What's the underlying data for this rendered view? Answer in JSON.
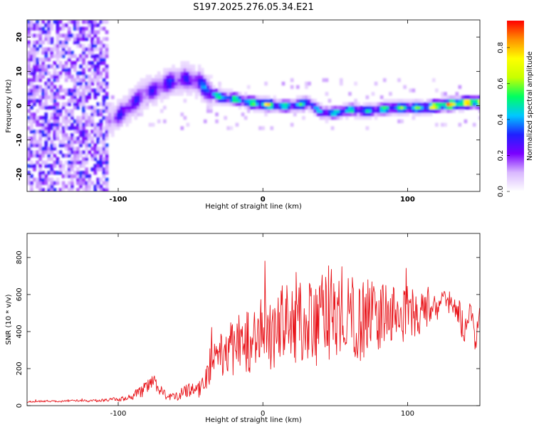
{
  "figure_title": "S197.2025.276.05.34.E21",
  "chart_data": [
    {
      "type": "heatmap",
      "title": "S197.2025.276.05.34.E21",
      "xlabel": "Height of straight line (km)",
      "ylabel": "Frequency (Hz)",
      "xlim": [
        -163,
        150
      ],
      "ylim": [
        -25,
        25
      ],
      "xticks": [
        -100,
        0,
        100
      ],
      "xtick_labels": [
        "-100",
        "0",
        "100"
      ],
      "yticks": [
        -20,
        -10,
        0,
        10,
        20
      ],
      "ytick_labels": [
        "-20",
        "-10",
        "0",
        "10",
        "20"
      ],
      "colorbar": {
        "label": "Normalized spectral amplitude",
        "range": [
          0,
          0.95
        ],
        "ticks": [
          0.0,
          0.2,
          0.4,
          0.6,
          0.8
        ],
        "tick_labels": [
          "0.0",
          "0.2",
          "0.4",
          "0.6",
          "0.8"
        ],
        "colormap": [
          "#ffffff",
          "#d9b8ff",
          "#7a00ff",
          "#2020ff",
          "#00c8ff",
          "#00ff60",
          "#c8ff00",
          "#ffff00",
          "#ff9000",
          "#ff0000"
        ]
      },
      "ridge_track": {
        "x": [
          -105,
          -95,
          -85,
          -75,
          -65,
          -55,
          -45,
          -38,
          -30,
          -20,
          -10,
          0,
          10,
          20,
          30,
          40,
          50,
          60,
          70,
          80,
          90,
          100,
          110,
          120,
          130,
          140,
          148
        ],
        "freq": [
          -4,
          -1,
          3,
          5,
          7,
          8,
          7,
          4,
          2.5,
          2,
          1,
          0.5,
          0,
          0,
          1,
          -2,
          -2,
          -1,
          -1.5,
          -1,
          -0.5,
          -0.5,
          -0.5,
          0,
          0.5,
          1,
          1
        ],
        "amplitude": [
          0.25,
          0.35,
          0.3,
          0.3,
          0.35,
          0.3,
          0.35,
          0.5,
          0.6,
          0.55,
          0.6,
          0.8,
          0.55,
          0.5,
          0.55,
          0.45,
          0.55,
          0.5,
          0.5,
          0.55,
          0.6,
          0.55,
          0.65,
          0.85,
          0.9,
          0.85,
          0.9
        ]
      },
      "background_noise": {
        "x_range": [
          -163,
          -108
        ],
        "freq_range": [
          -25,
          25
        ],
        "amplitude": 0.2
      }
    },
    {
      "type": "line",
      "xlabel": "Height of straight line (km)",
      "ylabel": "SNR (10 * v/v)",
      "xlim": [
        -163,
        150
      ],
      "ylim": [
        0,
        930
      ],
      "xticks": [
        -100,
        0,
        100
      ],
      "xtick_labels": [
        "-100",
        "0",
        "100"
      ],
      "yticks": [
        0,
        200,
        400,
        600,
        800
      ],
      "ytick_labels": [
        "0",
        "200",
        "400",
        "600",
        "800"
      ],
      "series": [
        {
          "name": "SNR",
          "color": "#e8151b",
          "x": [
            -163,
            -150,
            -140,
            -130,
            -120,
            -110,
            -100,
            -95,
            -90,
            -85,
            -80,
            -76,
            -72,
            -68,
            -64,
            -60,
            -55,
            -50,
            -45,
            -40,
            -36,
            -34,
            -30,
            -25,
            -20,
            -15,
            -10,
            -5,
            0,
            5,
            10,
            15,
            20,
            24,
            28,
            32,
            36,
            40,
            44,
            48,
            52,
            56,
            60,
            64,
            68,
            72,
            76,
            80,
            84,
            88,
            92,
            96,
            100,
            104,
            108,
            112,
            116,
            120,
            124,
            128,
            132,
            136,
            140,
            144,
            147,
            150
          ],
          "y": [
            20,
            25,
            22,
            28,
            25,
            30,
            35,
            40,
            50,
            70,
            100,
            140,
            90,
            60,
            45,
            50,
            70,
            90,
            80,
            130,
            230,
            280,
            250,
            320,
            300,
            360,
            340,
            380,
            410,
            370,
            420,
            450,
            440,
            500,
            420,
            460,
            400,
            450,
            520,
            480,
            500,
            430,
            520,
            470,
            450,
            480,
            520,
            460,
            500,
            470,
            510,
            480,
            500,
            520,
            480,
            500,
            530,
            500,
            600,
            550,
            520,
            490,
            380,
            520,
            300,
            560
          ],
          "noise_amplitude": [
            5,
            5,
            5,
            5,
            6,
            8,
            12,
            15,
            20,
            30,
            40,
            35,
            30,
            25,
            20,
            25,
            35,
            40,
            40,
            60,
            110,
            100,
            130,
            150,
            160,
            170,
            170,
            175,
            180,
            190,
            200,
            230,
            240,
            250,
            240,
            240,
            230,
            240,
            260,
            250,
            240,
            230,
            230,
            220,
            210,
            210,
            200,
            190,
            180,
            170,
            160,
            150,
            150,
            140,
            130,
            110,
            80,
            60,
            40,
            50,
            60,
            80,
            90,
            60,
            60,
            40
          ]
        }
      ]
    }
  ]
}
